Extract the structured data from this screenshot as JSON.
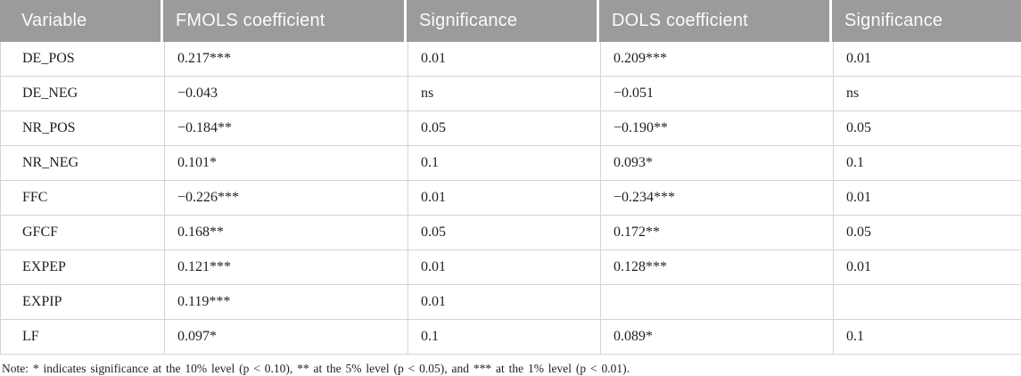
{
  "table": {
    "columns": [
      {
        "label": "Variable"
      },
      {
        "label": "FMOLS coefficient"
      },
      {
        "label": "Significance"
      },
      {
        "label": "DOLS coefficient"
      },
      {
        "label": "Significance"
      }
    ],
    "rows": [
      {
        "variable": "DE_POS",
        "fmols": "0.217***",
        "fmols_sig": "0.01",
        "dols": "0.209***",
        "dols_sig": "0.01"
      },
      {
        "variable": "DE_NEG",
        "fmols": "−0.043",
        "fmols_sig": "ns",
        "dols": "−0.051",
        "dols_sig": "ns"
      },
      {
        "variable": "NR_POS",
        "fmols": "−0.184**",
        "fmols_sig": "0.05",
        "dols": "−0.190**",
        "dols_sig": "0.05"
      },
      {
        "variable": "NR_NEG",
        "fmols": "0.101*",
        "fmols_sig": "0.1",
        "dols": "0.093*",
        "dols_sig": "0.1"
      },
      {
        "variable": "FFC",
        "fmols": "−0.226***",
        "fmols_sig": "0.01",
        "dols": "−0.234***",
        "dols_sig": "0.01"
      },
      {
        "variable": "GFCF",
        "fmols": "0.168**",
        "fmols_sig": "0.05",
        "dols": "0.172**",
        "dols_sig": "0.05"
      },
      {
        "variable": "EXPEP",
        "fmols": "0.121***",
        "fmols_sig": "0.01",
        "dols": "0.128***",
        "dols_sig": "0.01"
      },
      {
        "variable": "EXPIP",
        "fmols": "0.119***",
        "fmols_sig": "0.01",
        "dols": "",
        "dols_sig": ""
      },
      {
        "variable": "LF",
        "fmols": "0.097*",
        "fmols_sig": "0.1",
        "dols": "0.089*",
        "dols_sig": "0.1"
      }
    ]
  },
  "note": "Note: * indicates significance at the 10% level (p < 0.10), ** at the 5% level (p < 0.05), and *** at the 1% level (p < 0.01).",
  "colors": {
    "header_background": "#9b9b9b",
    "header_text": "#fbfbfb",
    "grid_line": "#d4d4d4",
    "body_text": "#1f1f1f"
  }
}
